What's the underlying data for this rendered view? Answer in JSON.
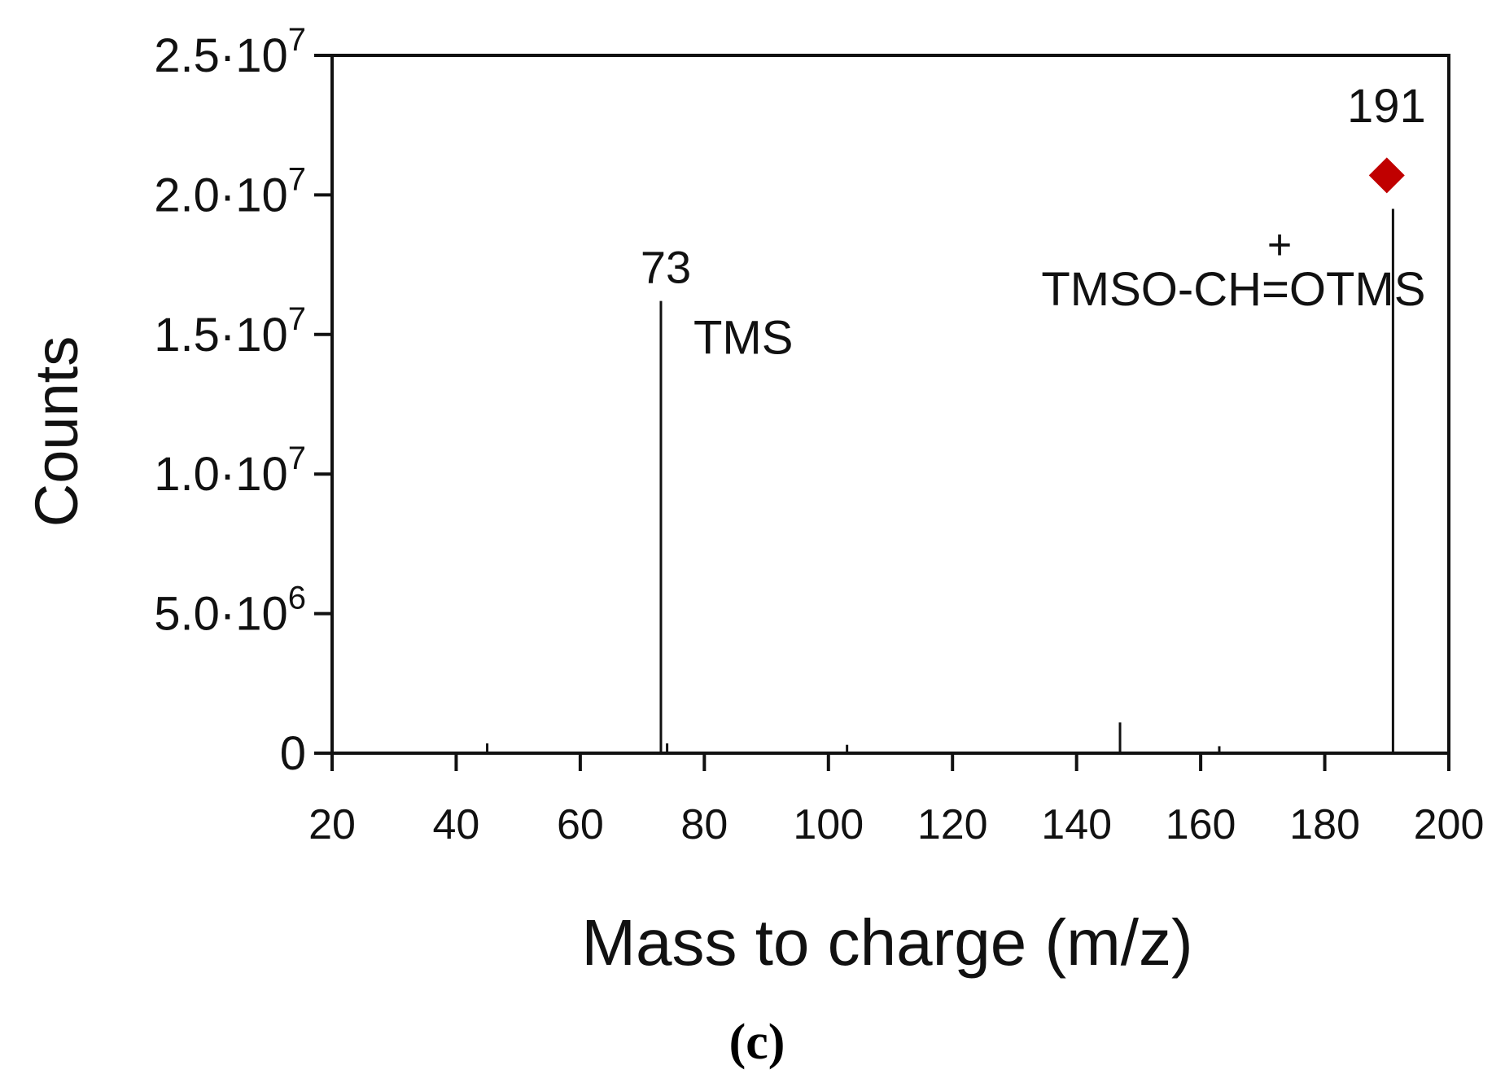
{
  "chart_data": {
    "type": "bar",
    "title": "",
    "xlabel": "Mass to charge (m/z)",
    "ylabel": "Counts",
    "xlim": [
      20,
      200
    ],
    "ylim": [
      0,
      25000000
    ],
    "x_ticks": [
      {
        "value": 20,
        "label": "20"
      },
      {
        "value": 40,
        "label": "40"
      },
      {
        "value": 60,
        "label": "60"
      },
      {
        "value": 80,
        "label": "80"
      },
      {
        "value": 100,
        "label": "100"
      },
      {
        "value": 120,
        "label": "120"
      },
      {
        "value": 140,
        "label": "140"
      },
      {
        "value": 160,
        "label": "160"
      },
      {
        "value": 180,
        "label": "180"
      },
      {
        "value": 200,
        "label": "200"
      }
    ],
    "y_ticks": [
      {
        "value": 0,
        "mantissa": "0",
        "exp": ""
      },
      {
        "value": 5000000,
        "mantissa": "5.0·10",
        "exp": "6"
      },
      {
        "value": 10000000,
        "mantissa": "1.0·10",
        "exp": "7"
      },
      {
        "value": 15000000,
        "mantissa": "1.5·10",
        "exp": "7"
      },
      {
        "value": 20000000,
        "mantissa": "2.0·10",
        "exp": "7"
      },
      {
        "value": 25000000,
        "mantissa": "2.5·10",
        "exp": "7"
      }
    ],
    "grid": false,
    "peaks": [
      {
        "mz": 45,
        "counts": 350000
      },
      {
        "mz": 73,
        "counts": 16200000,
        "label": "73",
        "annotation": "TMS"
      },
      {
        "mz": 74,
        "counts": 350000
      },
      {
        "mz": 103,
        "counts": 300000
      },
      {
        "mz": 147,
        "counts": 1100000
      },
      {
        "mz": 163,
        "counts": 250000
      },
      {
        "mz": 191,
        "counts": 19500000,
        "label": "191",
        "annotation": "TMSO-CH=OTMS",
        "annotation_charge": "+"
      }
    ],
    "marker": {
      "mz": 190,
      "counts": 20700000,
      "shape": "diamond",
      "color": "#c00000"
    },
    "panel_label": "(c)"
  }
}
